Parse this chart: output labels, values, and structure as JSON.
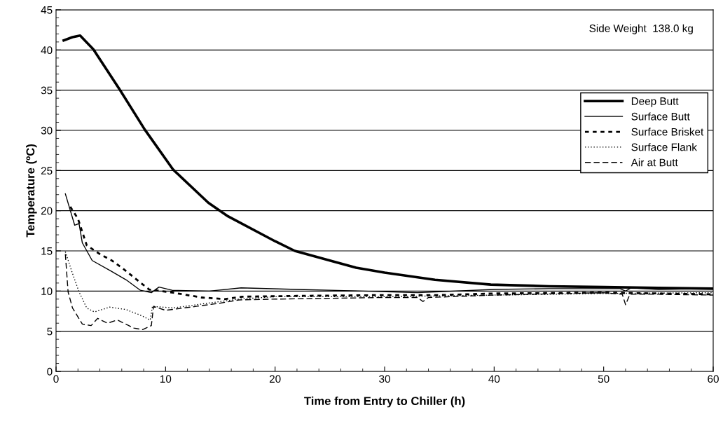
{
  "chart_data": {
    "type": "line",
    "xlabel": "Time from Entry to Chiller (h)",
    "ylabel": "Temperature (ºC)",
    "xlim": [
      0,
      60
    ],
    "xticks": [
      0,
      10,
      20,
      30,
      40,
      50,
      60
    ],
    "ylim": [
      0,
      45
    ],
    "yticks": [
      0,
      5,
      10,
      15,
      20,
      25,
      30,
      35,
      40,
      45
    ],
    "grid": "y",
    "legend": "right",
    "marker": "none",
    "annotations": [
      "Side Weight  138.0 kg"
    ],
    "series": [
      {
        "name": "Deep Butt",
        "color": "#000000",
        "line_style": "solid",
        "x": [
          0.7,
          1.5,
          2.2,
          3.4,
          5.8,
          8.1,
          10.7,
          13.9,
          15.7,
          20,
          21.8,
          25,
          27.4,
          30,
          34.6,
          39.7,
          45,
          50,
          55,
          60
        ],
        "values": [
          41.2,
          41.6,
          41.8,
          40.1,
          35.1,
          30.1,
          25.1,
          21.0,
          19.3,
          16.2,
          15.0,
          13.8,
          12.9,
          12.3,
          11.4,
          10.8,
          10.6,
          10.5,
          10.4,
          10.3
        ]
      },
      {
        "name": "Surface Butt",
        "color": "#000000",
        "line_style": "solid",
        "x": [
          0.85,
          1.7,
          2.1,
          2.4,
          3.3,
          5.0,
          6.4,
          7.7,
          8.7,
          9.4,
          10.6,
          14,
          16.9,
          22,
          28,
          33,
          40,
          45,
          51.5,
          52,
          52.5,
          55,
          60
        ],
        "values": [
          22.1,
          18.2,
          18.4,
          16.0,
          13.8,
          12.5,
          11.4,
          10.1,
          9.8,
          10.5,
          10.1,
          10.0,
          10.4,
          10.2,
          10.0,
          9.8,
          10.2,
          10.3,
          10.3,
          10.0,
          10.4,
          10.2,
          10.3
        ]
      },
      {
        "name": "Surface Brisket",
        "color": "#000000",
        "line_style": "dashed",
        "x": [
          1.3,
          2.0,
          2.8,
          4.0,
          5.1,
          6.2,
          7.2,
          8.5,
          10.7,
          13.3,
          15.4,
          17,
          22,
          30,
          35,
          40,
          50,
          60
        ],
        "values": [
          20.5,
          19.0,
          15.7,
          14.6,
          13.8,
          12.7,
          11.6,
          10.2,
          9.8,
          9.2,
          9.0,
          9.3,
          9.4,
          9.5,
          9.5,
          9.7,
          9.8,
          9.6
        ]
      },
      {
        "name": "Surface Flank",
        "color": "#000000",
        "line_style": "dotted",
        "x": [
          0.85,
          1.5,
          2.1,
          2.8,
          3.5,
          4.9,
          6.4,
          7.7,
          8.6,
          8.8,
          10.7,
          13.9,
          16.7,
          20,
          30,
          40,
          50,
          60
        ],
        "values": [
          14.9,
          12.2,
          9.9,
          7.9,
          7.4,
          8.0,
          7.7,
          7.0,
          6.4,
          8.1,
          7.9,
          8.5,
          9.0,
          9.3,
          9.3,
          9.5,
          9.7,
          9.8
        ]
      },
      {
        "name": "Air at Butt",
        "color": "#000000",
        "line_style": "dashed",
        "x": [
          0.85,
          1.1,
          1.5,
          2.4,
          3.2,
          3.8,
          4.7,
          5.6,
          7.1,
          7.9,
          8.7,
          8.9,
          10,
          12.8,
          15,
          16.7,
          20,
          30,
          33,
          33.5,
          34,
          40,
          50,
          51.7,
          52,
          52.4,
          55,
          60
        ],
        "values": [
          14.6,
          9.9,
          7.9,
          5.9,
          5.7,
          6.6,
          6.0,
          6.4,
          5.4,
          5.2,
          5.7,
          8.1,
          7.6,
          8.1,
          8.5,
          8.9,
          9.0,
          9.2,
          9.2,
          8.7,
          9.2,
          9.5,
          9.8,
          9.6,
          8.3,
          9.6,
          9.6,
          9.5
        ]
      }
    ]
  }
}
